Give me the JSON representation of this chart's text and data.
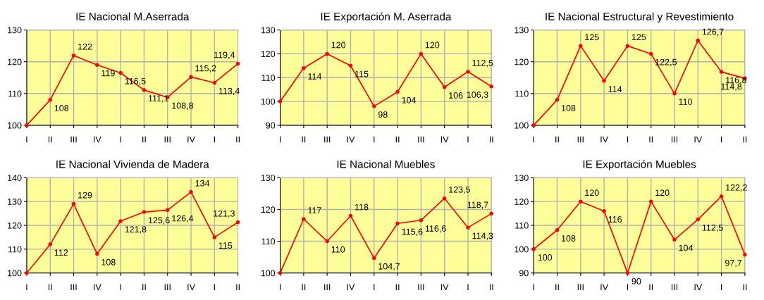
{
  "chart_data": [
    {
      "type": "line",
      "title": "IE Nacional M.Aserrada",
      "categories": [
        "I",
        "II",
        "III",
        "IV",
        "I",
        "II",
        "III",
        "IV",
        "I",
        "II"
      ],
      "ylim": [
        100,
        130
      ],
      "yticks": [
        100,
        110,
        120,
        130
      ],
      "grid": true,
      "marker": "circle",
      "series": [
        {
          "color": "#ff0000",
          "values": [
            100,
            108,
            122,
            119,
            116.5,
            111.1,
            108.8,
            115.2,
            113.4,
            119.4
          ],
          "value_labels": [
            null,
            "108",
            "122",
            "119",
            "116,5",
            "111,1",
            "108,8",
            "115,2",
            "113,4",
            "119,4"
          ]
        }
      ]
    },
    {
      "type": "line",
      "title": "IE Exportación M. Aserrada",
      "categories": [
        "I",
        "II",
        "III",
        "IV",
        "I",
        "II",
        "III",
        "IV",
        "I",
        "II"
      ],
      "ylim": [
        90,
        130
      ],
      "yticks": [
        90,
        100,
        110,
        120,
        130
      ],
      "grid": true,
      "marker": "circle",
      "series": [
        {
          "color": "#ff0000",
          "values": [
            100,
            114,
            120,
            115,
            98,
            104,
            120,
            106,
            112.5,
            106.3
          ],
          "value_labels": [
            null,
            "114",
            "120",
            "115",
            "98",
            "104",
            "120",
            "106",
            "112,5",
            "106,3"
          ]
        }
      ]
    },
    {
      "type": "line",
      "title": "IE Nacional Estructural y Revestimiento",
      "categories": [
        "I",
        "II",
        "III",
        "IV",
        "I",
        "II",
        "III",
        "IV",
        "I",
        "II"
      ],
      "ylim": [
        100,
        130
      ],
      "yticks": [
        100,
        110,
        120,
        130
      ],
      "grid": true,
      "marker": "circle",
      "series": [
        {
          "color": "#ff0000",
          "values": [
            100,
            108,
            125,
            114,
            125,
            122.5,
            110,
            126.7,
            116.8,
            114.8
          ],
          "value_labels": [
            null,
            "108",
            "125",
            "114",
            "125",
            "122,5",
            "110",
            "126,7",
            "116,8",
            "114,8"
          ]
        }
      ]
    },
    {
      "type": "line",
      "title": "IE Nacional Vivienda de Madera",
      "categories": [
        "I",
        "II",
        "III",
        "IV",
        "I",
        "II",
        "III",
        "IV",
        "I",
        "II"
      ],
      "ylim": [
        100,
        140
      ],
      "yticks": [
        100,
        110,
        120,
        130,
        140
      ],
      "grid": true,
      "marker": "circle",
      "series": [
        {
          "color": "#ff0000",
          "values": [
            100,
            112,
            129,
            108,
            121.8,
            125.6,
            126.4,
            134,
            115,
            121.3
          ],
          "value_labels": [
            null,
            "112",
            "129",
            "108",
            "121,8",
            "125,6",
            "126,4",
            "134",
            "115",
            "121,3"
          ]
        }
      ]
    },
    {
      "type": "line",
      "title": "IE Nacional Muebles",
      "categories": [
        "I",
        "II",
        "III",
        "IV",
        "I",
        "II",
        "III",
        "IV",
        "I",
        "II"
      ],
      "ylim": [
        100,
        130
      ],
      "yticks": [
        100,
        110,
        120,
        130
      ],
      "grid": true,
      "marker": "circle",
      "series": [
        {
          "color": "#ff0000",
          "values": [
            100,
            117,
            110,
            118,
            104.7,
            115.6,
            116.6,
            123.5,
            114.3,
            118.7
          ],
          "value_labels": [
            null,
            "117",
            "110",
            "118",
            "104,7",
            "115,6",
            "116,6",
            "123,5",
            "114,3",
            "118,7"
          ]
        }
      ]
    },
    {
      "type": "line",
      "title": "IE Exportación Muebles",
      "categories": [
        "I",
        "II",
        "III",
        "IV",
        "I",
        "II",
        "III",
        "IV",
        "I",
        "II"
      ],
      "ylim": [
        90,
        130
      ],
      "yticks": [
        90,
        100,
        110,
        120,
        130
      ],
      "grid": true,
      "marker": "circle",
      "series": [
        {
          "color": "#ff0000",
          "values": [
            100,
            108,
            120,
            116,
            90,
            120,
            104,
            112.5,
            122.2,
            97.7
          ],
          "value_labels": [
            "100",
            "108",
            "120",
            "116",
            "90",
            "120",
            "104",
            "112,5",
            "122,2",
            "97,7"
          ]
        }
      ]
    }
  ]
}
